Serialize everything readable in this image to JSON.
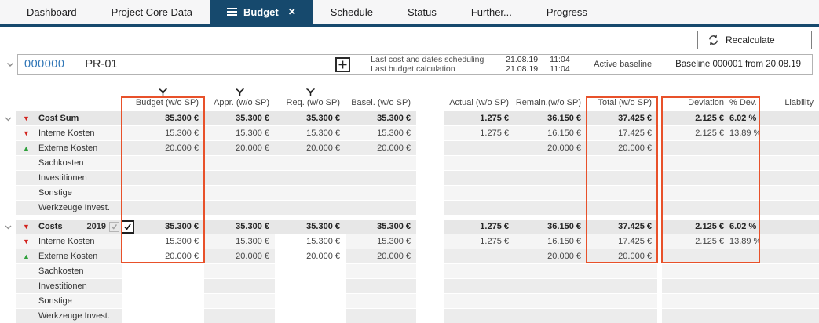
{
  "tabs": [
    {
      "label": "Dashboard",
      "active": false
    },
    {
      "label": "Project Core Data",
      "active": false
    },
    {
      "label": "Budget",
      "active": true
    },
    {
      "label": "Schedule",
      "active": false
    },
    {
      "label": "Status",
      "active": false
    },
    {
      "label": "Further...",
      "active": false
    },
    {
      "label": "Progress",
      "active": false
    }
  ],
  "toolbar": {
    "recalculate_label": "Recalculate"
  },
  "project": {
    "id": "000000",
    "name": "PR-01",
    "info_rows": [
      {
        "label": "Last cost and dates scheduling",
        "date": "21.08.19",
        "time": "11:04"
      },
      {
        "label": "Last budget calculation",
        "date": "21.08.19",
        "time": "11:04"
      }
    ],
    "active_baseline_label": "Active baseline",
    "baseline_value": "Baseline 000001 from 20.08.19"
  },
  "table": {
    "columns": [
      "Budget (w/o SP)",
      "Appr. (w/o SP)",
      "Req. (w/o SP)",
      "Basel. (w/o SP)",
      "Actual (w/o SP)",
      "Remain.(w/o SP)",
      "Total (w/o SP)",
      "Deviation",
      "% Dev.",
      "Liability"
    ],
    "filtered_columns": [
      0,
      1,
      2
    ],
    "groups": [
      {
        "rows": [
          {
            "label": "Cost Sum",
            "icon": "red-down",
            "sum": true,
            "expander": true,
            "values": [
              "35.300 €",
              "35.300 €",
              "35.300 €",
              "35.300 €",
              "1.275 €",
              "36.150 €",
              "37.425 €",
              "2.125 €",
              "6.02 %",
              ""
            ]
          },
          {
            "label": "Interne Kosten",
            "icon": "red-down",
            "values": [
              "15.300 €",
              "15.300 €",
              "15.300 €",
              "15.300 €",
              "1.275 €",
              "16.150 €",
              "17.425 €",
              "2.125 €",
              "13.89 %",
              ""
            ]
          },
          {
            "label": "Externe Kosten",
            "icon": "green-up",
            "values": [
              "20.000 €",
              "20.000 €",
              "20.000 €",
              "20.000 €",
              "",
              "20.000 €",
              "20.000 €",
              "",
              "",
              ""
            ]
          },
          {
            "label": "Sachkosten",
            "values": [
              "",
              "",
              "",
              "",
              "",
              "",
              "",
              "",
              "",
              ""
            ]
          },
          {
            "label": "Investitionen",
            "values": [
              "",
              "",
              "",
              "",
              "",
              "",
              "",
              "",
              "",
              ""
            ]
          },
          {
            "label": "Sonstige",
            "values": [
              "",
              "",
              "",
              "",
              "",
              "",
              "",
              "",
              "",
              ""
            ]
          },
          {
            "label": "Werkzeuge Invest.",
            "values": [
              "",
              "",
              "",
              "",
              "",
              "",
              "",
              "",
              "",
              ""
            ]
          }
        ]
      },
      {
        "rows": [
          {
            "label": "Costs",
            "year": "2019",
            "checkboxes": true,
            "icon": "red-down",
            "sum": true,
            "expander": true,
            "values": [
              "35.300 €",
              "35.300 €",
              "35.300 €",
              "35.300 €",
              "1.275 €",
              "36.150 €",
              "37.425 €",
              "2.125 €",
              "6.02 %",
              ""
            ]
          },
          {
            "label": "Interne Kosten",
            "icon": "red-down",
            "editable": [
              0,
              2
            ],
            "values": [
              "15.300 €",
              "15.300 €",
              "15.300 €",
              "15.300 €",
              "1.275 €",
              "16.150 €",
              "17.425 €",
              "2.125 €",
              "13.89 %",
              ""
            ]
          },
          {
            "label": "Externe Kosten",
            "icon": "green-up",
            "editable": [
              0,
              2
            ],
            "values": [
              "20.000 €",
              "20.000 €",
              "20.000 €",
              "20.000 €",
              "",
              "20.000 €",
              "20.000 €",
              "",
              "",
              ""
            ]
          },
          {
            "label": "Sachkosten",
            "editable": [
              0,
              2
            ],
            "values": [
              "",
              "",
              "",
              "",
              "",
              "",
              "",
              "",
              "",
              ""
            ]
          },
          {
            "label": "Investitionen",
            "editable": [
              0,
              2
            ],
            "values": [
              "",
              "",
              "",
              "",
              "",
              "",
              "",
              "",
              "",
              ""
            ]
          },
          {
            "label": "Sonstige",
            "editable": [
              0,
              2
            ],
            "values": [
              "",
              "",
              "",
              "",
              "",
              "",
              "",
              "",
              "",
              ""
            ]
          },
          {
            "label": "Werkzeuge Invest.",
            "editable": [
              0,
              2
            ],
            "values": [
              "",
              "",
              "",
              "",
              "",
              "",
              "",
              "",
              "",
              ""
            ]
          }
        ]
      }
    ]
  },
  "colors": {
    "tab_active": "#16496d",
    "highlight_orange": "#e8512a",
    "negative_red": "#d2231e",
    "positive_green": "#2fa03c",
    "link_blue": "#2e75b6"
  }
}
